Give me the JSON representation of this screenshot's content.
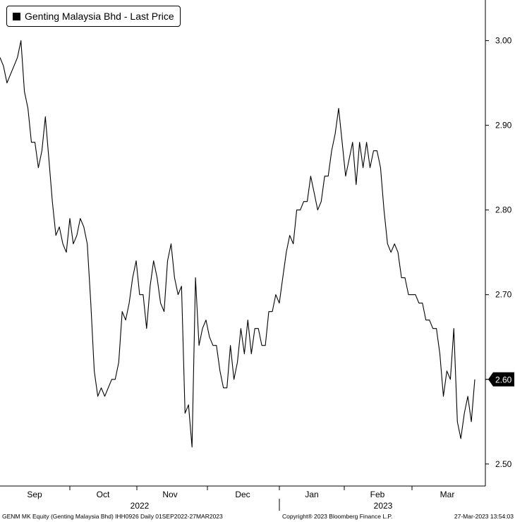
{
  "chart_data": {
    "type": "line",
    "title": "",
    "legend": {
      "label": "Genting Malaysia Bhd - Last Price",
      "position": "top-left"
    },
    "series": [
      {
        "name": "Genting Malaysia Bhd - Last Price",
        "color": "#000000",
        "values": [
          2.98,
          2.97,
          2.95,
          2.96,
          2.97,
          2.98,
          3.0,
          2.94,
          2.92,
          2.88,
          2.88,
          2.85,
          2.87,
          2.91,
          2.86,
          2.81,
          2.77,
          2.78,
          2.76,
          2.75,
          2.79,
          2.76,
          2.77,
          2.79,
          2.78,
          2.76,
          2.69,
          2.61,
          2.58,
          2.59,
          2.58,
          2.59,
          2.6,
          2.6,
          2.62,
          2.68,
          2.67,
          2.69,
          2.72,
          2.74,
          2.7,
          2.7,
          2.66,
          2.71,
          2.74,
          2.72,
          2.69,
          2.68,
          2.74,
          2.76,
          2.72,
          2.7,
          2.71,
          2.56,
          2.57,
          2.52,
          2.72,
          2.64,
          2.66,
          2.67,
          2.65,
          2.64,
          2.64,
          2.61,
          2.59,
          2.59,
          2.64,
          2.6,
          2.62,
          2.66,
          2.63,
          2.67,
          2.63,
          2.66,
          2.66,
          2.64,
          2.64,
          2.68,
          2.68,
          2.7,
          2.69,
          2.72,
          2.75,
          2.77,
          2.76,
          2.8,
          2.8,
          2.81,
          2.81,
          2.84,
          2.82,
          2.8,
          2.81,
          2.84,
          2.84,
          2.87,
          2.89,
          2.92,
          2.88,
          2.84,
          2.86,
          2.88,
          2.83,
          2.88,
          2.85,
          2.88,
          2.85,
          2.87,
          2.87,
          2.85,
          2.8,
          2.76,
          2.75,
          2.76,
          2.75,
          2.72,
          2.72,
          2.7,
          2.7,
          2.7,
          2.69,
          2.69,
          2.67,
          2.67,
          2.66,
          2.66,
          2.63,
          2.58,
          2.61,
          2.6,
          2.66,
          2.55,
          2.53,
          2.56,
          2.58,
          2.55,
          2.6
        ]
      }
    ],
    "x_axis": {
      "months": [
        "Sep",
        "Oct",
        "Nov",
        "Dec",
        "Jan",
        "Feb",
        "Mar"
      ],
      "years": [
        "2022",
        "2023"
      ],
      "range": [
        "01SEP2022",
        "27MAR2023"
      ]
    },
    "y_axis": {
      "ticks": [
        2.5,
        2.6,
        2.7,
        2.8,
        2.9,
        3.0
      ],
      "tick_labels": [
        "2.50",
        "2.60",
        "2.70",
        "2.80",
        "2.90",
        "3.00"
      ],
      "position": "right",
      "ylim": [
        2.474,
        3.048
      ]
    },
    "last_price_label": "2.60",
    "grid": false
  },
  "footer": {
    "left": "GENM MK Equity (Genting Malaysia Bhd) IHH0926  Daily 01SEP2022-27MAR2023",
    "center": "Copyright® 2023 Bloomberg Finance L.P.",
    "right": "27-Mar-2023 13:54:03"
  }
}
